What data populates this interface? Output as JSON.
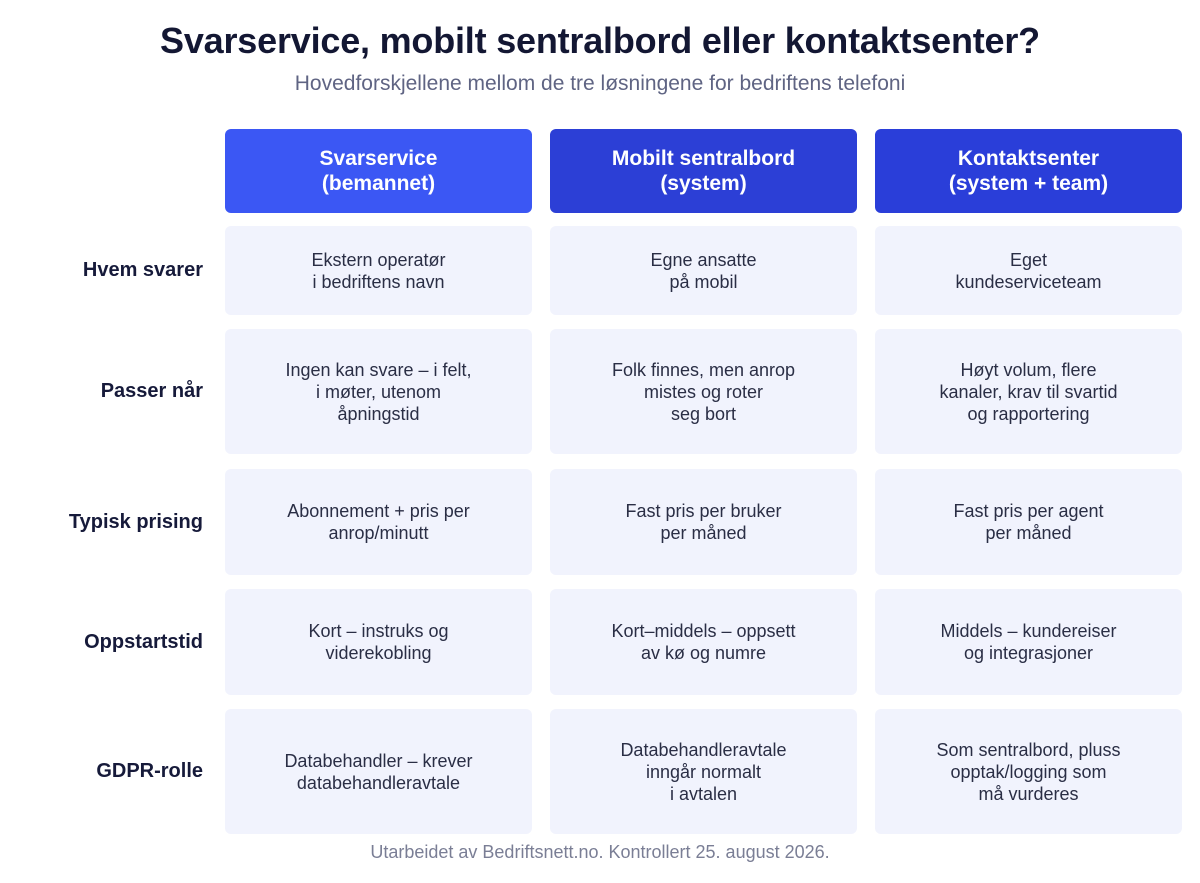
{
  "title": "Svarservice, mobilt sentralbord eller kontaktsenter?",
  "subtitle": "Hovedforskjellene mellom de tre løsningene for bedriftens telefoni",
  "columns": [
    {
      "line1": "Svarservice",
      "line2": "(bemannet)",
      "color": "#3b57f4"
    },
    {
      "line1": "Mobilt sentralbord",
      "line2": "(system)",
      "color": "#2c3fd6"
    },
    {
      "line1": "Kontaktsenter",
      "line2": "(system + team)",
      "color": "#2a3ed9"
    }
  ],
  "rows": [
    {
      "label": "Hvem svarer",
      "cells": [
        "Ekstern operatør\ni bedriftens navn",
        "Egne ansatte\npå mobil",
        "Eget\nkundeserviceteam"
      ]
    },
    {
      "label": "Passer når",
      "cells": [
        "Ingen kan svare – i felt,\ni møter, utenom\nåpningstid",
        "Folk finnes, men anrop\nmistes og roter\nseg bort",
        "Høyt volum, flere\nkanaler, krav til svartid\nog rapportering"
      ]
    },
    {
      "label": "Typisk prising",
      "cells": [
        "Abonnement + pris per\nanrop/minutt",
        "Fast pris per bruker\nper måned",
        "Fast pris per agent\nper måned"
      ]
    },
    {
      "label": "Oppstartstid",
      "cells": [
        "Kort – instruks og\nviderekobling",
        "Kort–middels – oppsett\nav kø og numre",
        "Middels – kundereiser\nog integrasjoner"
      ]
    },
    {
      "label": "GDPR-rolle",
      "cells": [
        "Databehandler – krever\ndatabehandleravtale",
        "Databehandleravtale\ninngår normalt\ni avtalen",
        "Som sentralbord, pluss\nopptak/logging som\nmå vurderes"
      ]
    }
  ],
  "footer": "Utarbeidet av Bedriftsnett.no. Kontrollert 25. august 2026.",
  "colors": {
    "cell_background": "#f1f3fd",
    "title_text": "#131733",
    "subtitle_text": "#5f6483"
  }
}
